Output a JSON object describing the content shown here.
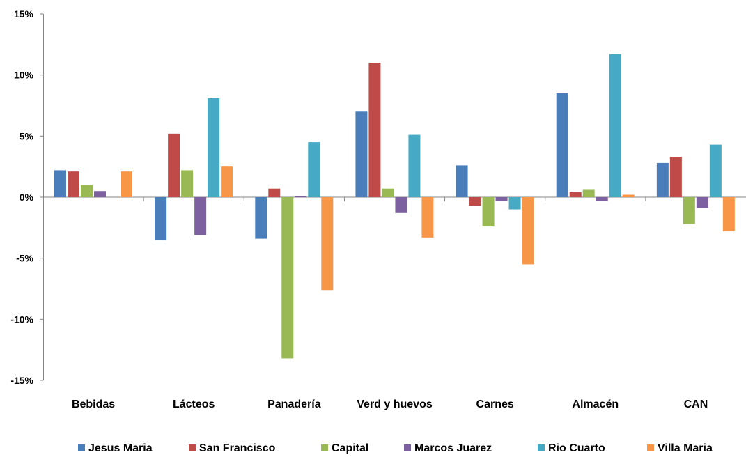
{
  "chart_data": {
    "type": "bar",
    "title": "",
    "xlabel": "",
    "ylabel": "",
    "ylim": [
      -15,
      15
    ],
    "yticks": [
      "15%",
      "10%",
      "5%",
      "0%",
      "-5%",
      "-10%",
      "-15%"
    ],
    "ytick_values": [
      15,
      10,
      5,
      0,
      -5,
      -10,
      -15
    ],
    "grid": false,
    "legend_position": "bottom",
    "categories": [
      "Bebidas",
      "Lácteos",
      "Panadería",
      "Verd y huevos",
      "Carnes",
      "Almacén",
      "CAN"
    ],
    "series": [
      {
        "name": "Jesus Maria",
        "color": "#4a7ebb",
        "values": [
          2.2,
          -3.5,
          -3.4,
          7.0,
          2.6,
          8.5,
          2.8
        ]
      },
      {
        "name": "San Francisco",
        "color": "#be4b48",
        "values": [
          2.1,
          5.2,
          0.7,
          11.0,
          -0.7,
          0.4,
          3.3
        ]
      },
      {
        "name": "Capital",
        "color": "#98b954",
        "values": [
          1.0,
          2.2,
          -13.2,
          0.7,
          -2.4,
          0.6,
          -2.2
        ]
      },
      {
        "name": "Marcos Juarez",
        "color": "#7d60a0",
        "values": [
          0.5,
          -3.1,
          0.1,
          -1.3,
          -0.3,
          -0.3,
          -0.9
        ]
      },
      {
        "name": "Rio Cuarto",
        "color": "#46aac5",
        "values": [
          0.0,
          8.1,
          4.5,
          5.1,
          -1.0,
          11.7,
          4.3
        ]
      },
      {
        "name": "Villa Maria",
        "color": "#f79646",
        "values": [
          2.1,
          2.5,
          -7.6,
          -3.3,
          -5.5,
          0.2,
          -2.8
        ]
      }
    ]
  }
}
